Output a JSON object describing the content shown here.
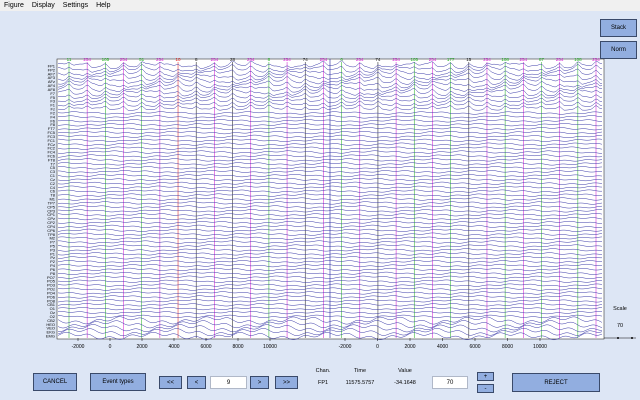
{
  "menu": [
    "Figure",
    "Display",
    "Settings",
    "Help"
  ],
  "side_buttons": {
    "stack": "Stack",
    "norm": "Norm"
  },
  "scale": {
    "label": "Scale",
    "value": "70"
  },
  "channels": [
    "FP1",
    "FP2",
    "AF7",
    "AF3",
    "AFz",
    "AF4",
    "AF8",
    "F7",
    "F5",
    "F3",
    "F1",
    "Fz",
    "F2",
    "F4",
    "F6",
    "F8",
    "FT7",
    "FC5",
    "FC3",
    "FC1",
    "FCz",
    "FC2",
    "FC4",
    "FC6",
    "FT8",
    "T7",
    "C5",
    "C3",
    "C1",
    "Cz",
    "C2",
    "C4",
    "C6",
    "T8",
    "M1",
    "TP7",
    "CP5",
    "CP3",
    "CP1",
    "CPz",
    "CP2",
    "CP4",
    "CP6",
    "TP8",
    "M2",
    "P7",
    "P5",
    "P3",
    "P1",
    "Pz",
    "P2",
    "P4",
    "P6",
    "P8",
    "PO7",
    "PO5",
    "PO3",
    "POz",
    "PO4",
    "PO6",
    "PO8",
    "CB1",
    "O1",
    "Oz",
    "O2",
    "CB2",
    "HEO",
    "VEO",
    "EKG",
    "EMG"
  ],
  "ticks": [
    "-2000",
    "0",
    "2000",
    "4000",
    "6000",
    "8000",
    "10000"
  ],
  "events": [
    {
      "label": "11",
      "color": "#19b019"
    },
    {
      "label": "254",
      "color": "#d010d0"
    },
    {
      "label": "105",
      "color": "#19b019"
    },
    {
      "label": "254",
      "color": "#d010d0"
    },
    {
      "label": "51",
      "color": "#19b019"
    },
    {
      "label": "254",
      "color": "#d010d0"
    },
    {
      "label": "10",
      "color": "#e01010"
    },
    {
      "label": "8",
      "color": "#111111"
    },
    {
      "label": "254",
      "color": "#d010d0"
    },
    {
      "label": "28",
      "color": "#111111"
    },
    {
      "label": "254",
      "color": "#d010d0"
    },
    {
      "label": "8",
      "color": "#19b019"
    },
    {
      "label": "254",
      "color": "#d010d0"
    },
    {
      "label": "74",
      "color": "#111111"
    },
    {
      "label": "254",
      "color": "#d010d0"
    },
    {
      "label": "6",
      "color": "#19b019"
    },
    {
      "label": "254",
      "color": "#d010d0"
    },
    {
      "label": "74",
      "color": "#111111"
    },
    {
      "label": "254",
      "color": "#d010d0"
    },
    {
      "label": "105",
      "color": "#19b019"
    },
    {
      "label": "254",
      "color": "#d010d0"
    },
    {
      "label": "177",
      "color": "#19b019"
    },
    {
      "label": "15",
      "color": "#111111"
    },
    {
      "label": "254",
      "color": "#d010d0"
    },
    {
      "label": "108",
      "color": "#19b019"
    },
    {
      "label": "254",
      "color": "#d010d0"
    },
    {
      "label": "87",
      "color": "#19b019"
    },
    {
      "label": "254",
      "color": "#d010d0"
    },
    {
      "label": "108",
      "color": "#19b019"
    },
    {
      "label": "254",
      "color": "#d010d0"
    }
  ],
  "controls": {
    "cancel": "CANCEL",
    "event_types": "Event types",
    "prev_far": "<<",
    "prev": "<",
    "window_value": "9",
    "next": ">",
    "next_far": ">>",
    "reject": "REJECT",
    "plus": "+",
    "minus": "-",
    "scale_value": "70"
  },
  "readout": {
    "chan_label": "Chan.",
    "time_label": "Time",
    "value_label": "Value",
    "chan": "FP1",
    "time": "11575.5757",
    "value": "-34.1648"
  },
  "colors": {
    "trace": "#3a3aa8",
    "background": "#dde6f5",
    "button": "#92aee0",
    "plot_bg": "#ffffff"
  }
}
